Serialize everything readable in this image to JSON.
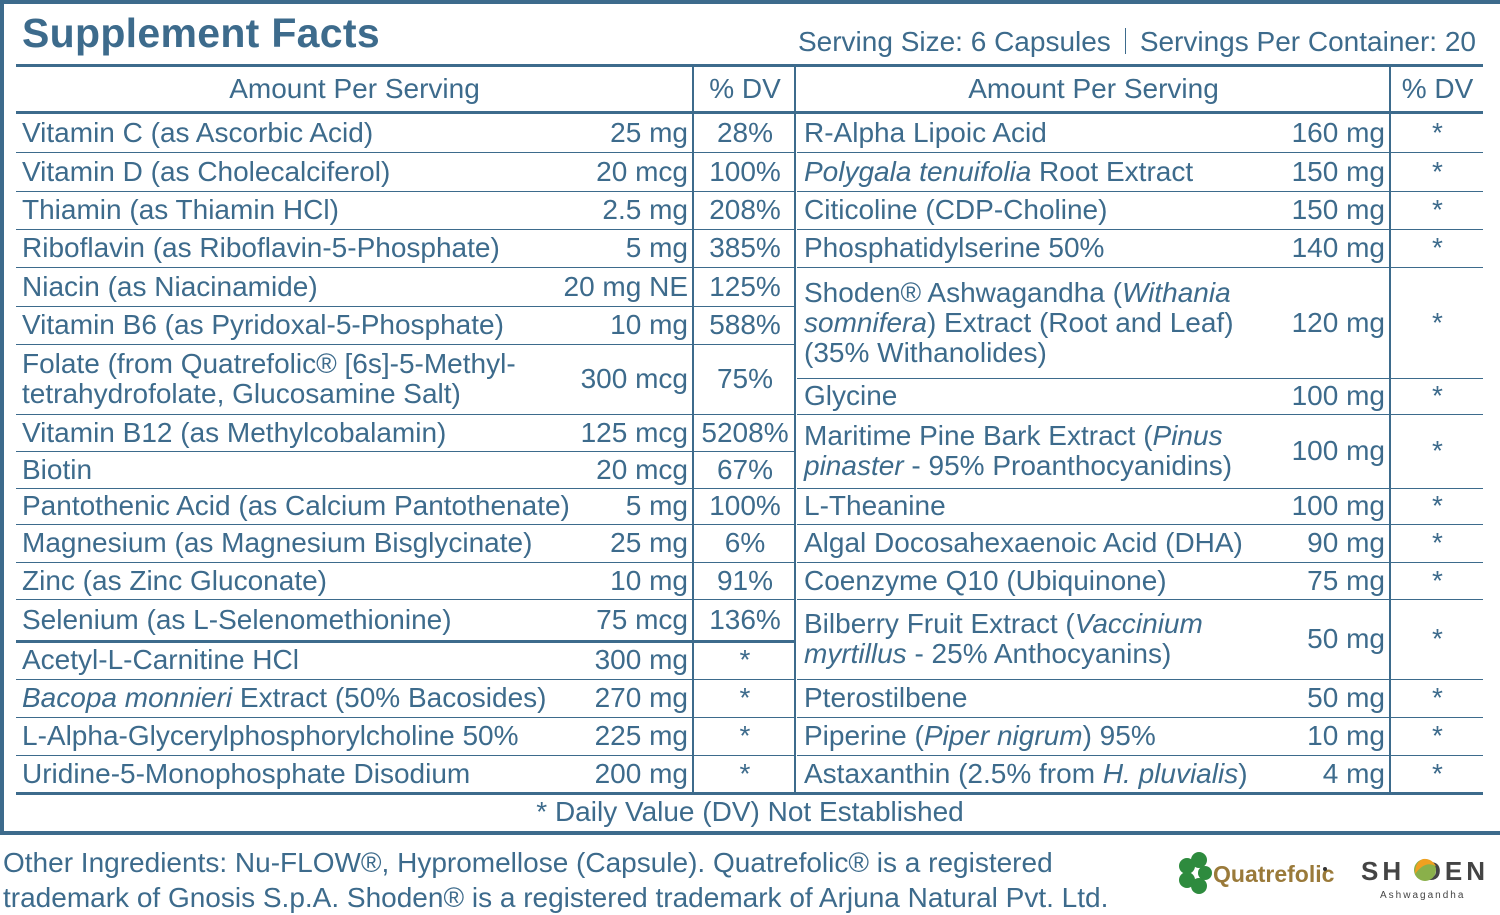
{
  "title": "Supplement Facts",
  "serving_size": "Serving Size: 6 Capsules",
  "servings_per_container": "Servings Per Container: 20",
  "headers": {
    "amount_left": "Amount Per Serving",
    "dv_left": "% DV",
    "amount_right": "Amount Per Serving",
    "dv_right": "% DV"
  },
  "left_rows": [
    {
      "name": [
        {
          "t": "Vitamin C (as Ascorbic Acid)"
        }
      ],
      "amount": "25 mg",
      "dv": "28%"
    },
    {
      "name": [
        {
          "t": "Vitamin D (as Cholecalciferol)"
        }
      ],
      "amount": "20 mcg",
      "dv": "100%"
    },
    {
      "name": [
        {
          "t": "Thiamin (as Thiamin HCl)"
        }
      ],
      "amount": "2.5 mg",
      "dv": "208%"
    },
    {
      "name": [
        {
          "t": "Riboflavin (as Riboflavin-5-Phosphate)"
        }
      ],
      "amount": "5 mg",
      "dv": "385%"
    },
    {
      "name": [
        {
          "t": "Niacin (as Niacinamide)"
        }
      ],
      "amount": "20 mg NE",
      "dv": "125%"
    },
    {
      "name": [
        {
          "t": "Vitamin B6 (as Pyridoxal-5-Phosphate)"
        }
      ],
      "amount": "10 mg",
      "dv": "588%"
    },
    {
      "name": [
        {
          "t": "Folate (from Quatrefolic® [6s]-5-Methyl-tetrahydrofolate, Glucosamine Salt)"
        }
      ],
      "amount": "300 mcg",
      "dv": "75%"
    },
    {
      "name": [
        {
          "t": "Vitamin B12 (as Methylcobalamin)"
        }
      ],
      "amount": "125 mcg",
      "dv": "5208%"
    },
    {
      "name": [
        {
          "t": "Biotin"
        }
      ],
      "amount": "20 mcg",
      "dv": "67%"
    },
    {
      "name": [
        {
          "t": "Pantothenic Acid (as Calcium Pantothenate)"
        }
      ],
      "amount": "5 mg",
      "dv": "100%"
    },
    {
      "name": [
        {
          "t": "Magnesium (as Magnesium Bisglycinate)"
        }
      ],
      "amount": "25 mg",
      "dv": "6%"
    },
    {
      "name": [
        {
          "t": "Zinc (as Zinc Gluconate)"
        }
      ],
      "amount": "10 mg",
      "dv": "91%"
    },
    {
      "name": [
        {
          "t": "Selenium (as L-Selenomethionine)"
        }
      ],
      "amount": "75 mcg",
      "dv": "136%"
    },
    {
      "name": [
        {
          "t": "Acetyl-L-Carnitine HCl"
        }
      ],
      "amount": "300 mg",
      "dv": "*"
    },
    {
      "name": [
        {
          "t": "Bacopa monnieri",
          "i": true
        },
        {
          "t": " Extract (50% Bacosides)"
        }
      ],
      "amount": "270 mg",
      "dv": "*"
    },
    {
      "name": [
        {
          "t": "L-Alpha-Glycerylphosphorylcholine 50%"
        }
      ],
      "amount": "225 mg",
      "dv": "*"
    },
    {
      "name": [
        {
          "t": "Uridine-5-Monophosphate Disodium"
        }
      ],
      "amount": "200 mg",
      "dv": "*"
    }
  ],
  "right_rows": [
    {
      "name": [
        {
          "t": "R-Alpha Lipoic Acid"
        }
      ],
      "amount": "160 mg",
      "dv": "*"
    },
    {
      "name": [
        {
          "t": "Polygala tenuifolia",
          "i": true
        },
        {
          "t": " Root Extract"
        }
      ],
      "amount": "150 mg",
      "dv": "*"
    },
    {
      "name": [
        {
          "t": "Citicoline (CDP-Choline)"
        }
      ],
      "amount": "150 mg",
      "dv": "*"
    },
    {
      "name": [
        {
          "t": "Phosphatidylserine 50%"
        }
      ],
      "amount": "140 mg",
      "dv": "*"
    },
    {
      "name": [
        {
          "t": "Shoden® Ashwagandha ("
        },
        {
          "t": "Withania somnifera",
          "i": true
        },
        {
          "t": ") Extract (Root and Leaf) (35% Withanolides)"
        }
      ],
      "amount": "120 mg",
      "dv": "*"
    },
    {
      "name": [
        {
          "t": "Glycine"
        }
      ],
      "amount": "100 mg",
      "dv": "*"
    },
    {
      "name": [
        {
          "t": "Maritime Pine Bark Extract ("
        },
        {
          "t": "Pinus pinaster",
          "i": true
        },
        {
          "t": " - 95% Proanthocyanidins)"
        }
      ],
      "amount": "100 mg",
      "dv": "*"
    },
    {
      "name": [
        {
          "t": "L-Theanine"
        }
      ],
      "amount": "100 mg",
      "dv": "*"
    },
    {
      "name": [
        {
          "t": "Algal Docosahexaenoic Acid (DHA)"
        }
      ],
      "amount": "90 mg",
      "dv": "*"
    },
    {
      "name": [
        {
          "t": "Coenzyme Q10 (Ubiquinone)"
        }
      ],
      "amount": "75 mg",
      "dv": "*"
    },
    {
      "name": [
        {
          "t": "Bilberry Fruit Extract ("
        },
        {
          "t": "Vaccinium myrtillus",
          "i": true
        },
        {
          "t": " - 25% Anthocyanins)"
        }
      ],
      "amount": "50 mg",
      "dv": "*"
    },
    {
      "name": [
        {
          "t": "Pterostilbene"
        }
      ],
      "amount": "50 mg",
      "dv": "*"
    },
    {
      "name": [
        {
          "t": "Piperine ("
        },
        {
          "t": "Piper nigrum",
          "i": true
        },
        {
          "t": ") 95%"
        }
      ],
      "amount": "10 mg",
      "dv": "*"
    },
    {
      "name": [
        {
          "t": "Astaxanthin (2.5% from "
        },
        {
          "t": "H. pluvialis",
          "i": true
        },
        {
          "t": ")"
        }
      ],
      "amount": "4 mg",
      "dv": "*"
    }
  ],
  "footnote": "* Daily Value (DV) Not Established",
  "other_ingredients": "Other Ingredients: Nu-FLOW®, Hypromellose (Capsule). Quatrefolic® is a registered trademark of Gnosis S.p.A. Shoden® is a registered trademark of Arjuna Natural Pvt. Ltd.",
  "logos": {
    "quatrefolic": "Quatrefolic",
    "shoden": "SHODEN",
    "shoden_sub": "Ashwagandha"
  },
  "colors": {
    "text": "#3d6b8c",
    "clover": "#2e8b3e",
    "quatrefolic_text": "#9a7a3a",
    "shoden_text": "#444444"
  }
}
